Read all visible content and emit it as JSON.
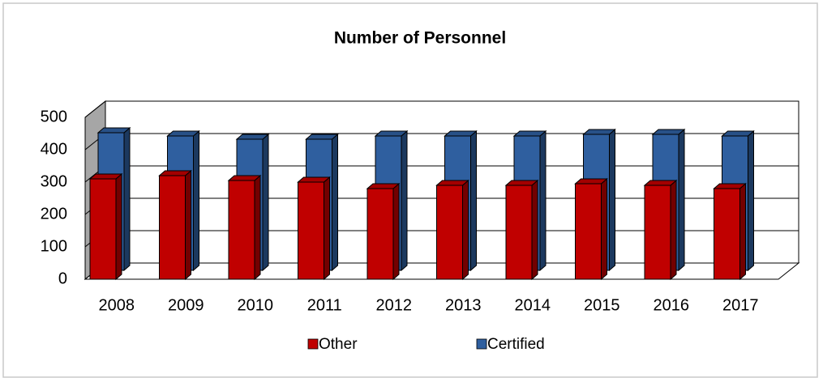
{
  "chart_data": {
    "type": "bar3d",
    "title": "Number of Personnel",
    "categories": [
      "2008",
      "2009",
      "2010",
      "2011",
      "2012",
      "2013",
      "2014",
      "2015",
      "2016",
      "2017"
    ],
    "series": [
      {
        "name": "Other",
        "color": "#c00000",
        "values": [
          310,
          320,
          305,
          300,
          280,
          290,
          290,
          295,
          290,
          280
        ]
      },
      {
        "name": "Certified",
        "color": "#2f5f9f",
        "values": [
          425,
          415,
          405,
          405,
          415,
          415,
          415,
          420,
          420,
          415
        ]
      }
    ],
    "ylim": [
      0,
      500
    ],
    "yticks": [
      0,
      100,
      200,
      300,
      400,
      500
    ],
    "grid": true,
    "legend": "bottom"
  }
}
